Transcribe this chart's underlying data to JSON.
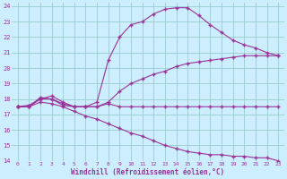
{
  "xlabel": "Windchill (Refroidissement éolien,°C)",
  "bg_color": "#cceeff",
  "grid_color": "#99cccc",
  "line_color": "#993399",
  "xlim": [
    -0.5,
    23.5
  ],
  "ylim": [
    14,
    24.2
  ],
  "yticks": [
    14,
    15,
    16,
    17,
    18,
    19,
    20,
    21,
    22,
    23,
    24
  ],
  "xticks": [
    0,
    1,
    2,
    3,
    4,
    5,
    6,
    7,
    8,
    9,
    10,
    11,
    12,
    13,
    14,
    15,
    16,
    17,
    18,
    19,
    20,
    21,
    22,
    23
  ],
  "line1_x": [
    0,
    1,
    2,
    3,
    4,
    5,
    6,
    7,
    8,
    9,
    10,
    11,
    12,
    13,
    14,
    15,
    16,
    17,
    18,
    19,
    20,
    21,
    22,
    23
  ],
  "line1_y": [
    17.5,
    17.5,
    18.0,
    18.0,
    17.7,
    17.5,
    17.5,
    17.5,
    17.7,
    17.5,
    17.5,
    17.5,
    17.5,
    17.5,
    17.5,
    17.5,
    17.5,
    17.5,
    17.5,
    17.5,
    17.5,
    17.5,
    17.5,
    17.5
  ],
  "line2_x": [
    0,
    1,
    2,
    3,
    4,
    5,
    6,
    7,
    8,
    9,
    10,
    11,
    12,
    13,
    14,
    15,
    16,
    17,
    18,
    19,
    20,
    21,
    22,
    23
  ],
  "line2_y": [
    17.5,
    17.6,
    18.0,
    18.2,
    17.8,
    17.5,
    17.5,
    17.5,
    17.8,
    18.5,
    19.0,
    19.3,
    19.6,
    19.8,
    20.1,
    20.3,
    20.4,
    20.5,
    20.6,
    20.7,
    20.8,
    20.8,
    20.8,
    20.8
  ],
  "line3_x": [
    0,
    1,
    2,
    3,
    4,
    5,
    6,
    7,
    8,
    9,
    10,
    11,
    12,
    13,
    14,
    15,
    16,
    17,
    18,
    19,
    20,
    21,
    22,
    23
  ],
  "line3_y": [
    17.5,
    17.5,
    17.8,
    17.7,
    17.5,
    17.2,
    16.9,
    16.7,
    16.4,
    16.1,
    15.8,
    15.6,
    15.3,
    15.0,
    14.8,
    14.6,
    14.5,
    14.4,
    14.4,
    14.3,
    14.3,
    14.2,
    14.2,
    14.0
  ],
  "line4_x": [
    0,
    1,
    2,
    3,
    4,
    5,
    6,
    7,
    8,
    9,
    10,
    11,
    12,
    13,
    14,
    15,
    16,
    17,
    18,
    19,
    20,
    21,
    22,
    23
  ],
  "line4_y": [
    17.5,
    17.5,
    18.1,
    18.0,
    17.6,
    17.5,
    17.5,
    17.8,
    20.5,
    22.0,
    22.8,
    23.0,
    23.5,
    23.8,
    23.9,
    23.9,
    23.4,
    22.8,
    22.3,
    21.8,
    21.5,
    21.3,
    21.0,
    20.8
  ]
}
